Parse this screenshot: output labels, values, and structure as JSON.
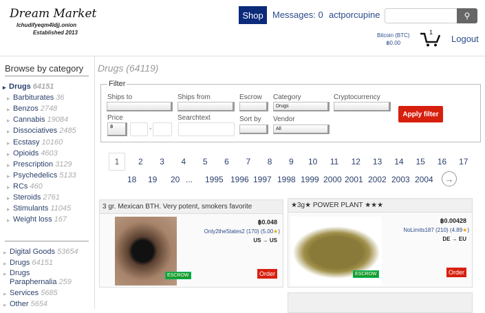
{
  "header": {
    "logo_title": "Dream Market",
    "logo_onion": "lchudifyeqm4ldjj.onion",
    "logo_est": "Established 2013",
    "shop": "Shop",
    "messages": "Messages: 0",
    "username": "actporcupine",
    "search_placeholder": "",
    "search_icon": "magnifier-icon",
    "currency_label": "Bitcoin (BTC)",
    "balance": "฿0.00",
    "cart_count": "1",
    "logout": "Logout"
  },
  "sidebar": {
    "title": "Browse by category",
    "categories": [
      {
        "label": "Drugs",
        "count": "64151",
        "active": true
      },
      {
        "label": "Barbiturates",
        "count": "36"
      },
      {
        "label": "Benzos",
        "count": "2748"
      },
      {
        "label": "Cannabis",
        "count": "19084"
      },
      {
        "label": "Dissociatives",
        "count": "2485"
      },
      {
        "label": "Ecstasy",
        "count": "10160"
      },
      {
        "label": "Opioids",
        "count": "4603"
      },
      {
        "label": "Prescription",
        "count": "3129"
      },
      {
        "label": "Psychedelics",
        "count": "5133"
      },
      {
        "label": "RCs",
        "count": "460"
      },
      {
        "label": "Steroids",
        "count": "2761"
      },
      {
        "label": "Stimulants",
        "count": "11045"
      },
      {
        "label": "Weight loss",
        "count": "167"
      }
    ],
    "top": [
      {
        "label": "Digital Goods",
        "count": "53654"
      },
      {
        "label": "Drugs",
        "count": "64151"
      },
      {
        "label": "Drugs Paraphernalia",
        "count": "259"
      },
      {
        "label": "Services",
        "count": "5685"
      },
      {
        "label": "Other",
        "count": "5654"
      }
    ]
  },
  "main": {
    "heading": "Drugs (64119)",
    "filter": {
      "legend": "Filter",
      "ships_to": "Ships to",
      "ships_from": "Ships from",
      "escrow": "Escrow",
      "category": "Category",
      "category_value": "Drugs",
      "crypto": "Cryptocurrency",
      "price": "Price",
      "price_currency": "฿",
      "price_sep": "-",
      "searchtext": "Searchtext",
      "sort_by": "Sort by",
      "vendor": "Vendor",
      "vendor_value": "All",
      "apply": "Apply filter"
    },
    "pages_row1": [
      "1",
      "2",
      "3",
      "4",
      "5",
      "6",
      "7",
      "8",
      "9",
      "10",
      "11",
      "12",
      "13",
      "14",
      "15",
      "16",
      "17"
    ],
    "pages_row2": [
      "18",
      "19",
      "20",
      "...",
      "1995",
      "1996",
      "1997",
      "1998",
      "1999",
      "2000",
      "2001",
      "2002",
      "2003",
      "2004"
    ],
    "listings": [
      {
        "title": "3 gr. Mexican BTH. Very potent, smokers favorite",
        "price": "฿0.048",
        "vendor": "Only2theStates2 (170) (5.00",
        "route": "US → US",
        "escrow": "ESCROW",
        "order": "Order"
      },
      {
        "title": "★3g★ POWER PLANT ★★★",
        "price": "฿0.00428",
        "vendor": "NoLimits187 (210) (4.89",
        "route": "DE → EU",
        "escrow": "ESCROW",
        "order": "Order"
      }
    ]
  }
}
